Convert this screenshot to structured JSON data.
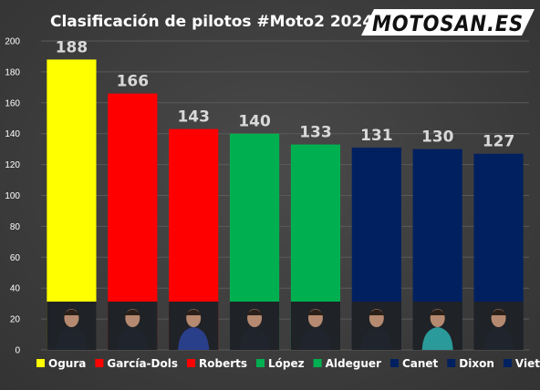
{
  "header": {
    "title": "Clasificación de pilotos #Moto2 2024",
    "logo_text": "MOTOSAN.ES"
  },
  "chart_data": {
    "type": "bar",
    "title": "Clasificación de pilotos #Moto2 2024",
    "xlabel": "",
    "ylabel": "",
    "ylim": [
      0,
      200
    ],
    "yticks": [
      0,
      20,
      40,
      60,
      80,
      100,
      120,
      140,
      160,
      180,
      200
    ],
    "grid": true,
    "legend_position": "bottom",
    "categories": [
      "Ogura",
      "García-Dols",
      "Roberts",
      "López",
      "Aldeguer",
      "Canet",
      "Dixon",
      "Vietti"
    ],
    "values": [
      188,
      166,
      143,
      140,
      133,
      131,
      130,
      127
    ],
    "colors": [
      "#ffff00",
      "#ff0000",
      "#ff0000",
      "#00b050",
      "#00b050",
      "#002060",
      "#002060",
      "#002060"
    ]
  }
}
